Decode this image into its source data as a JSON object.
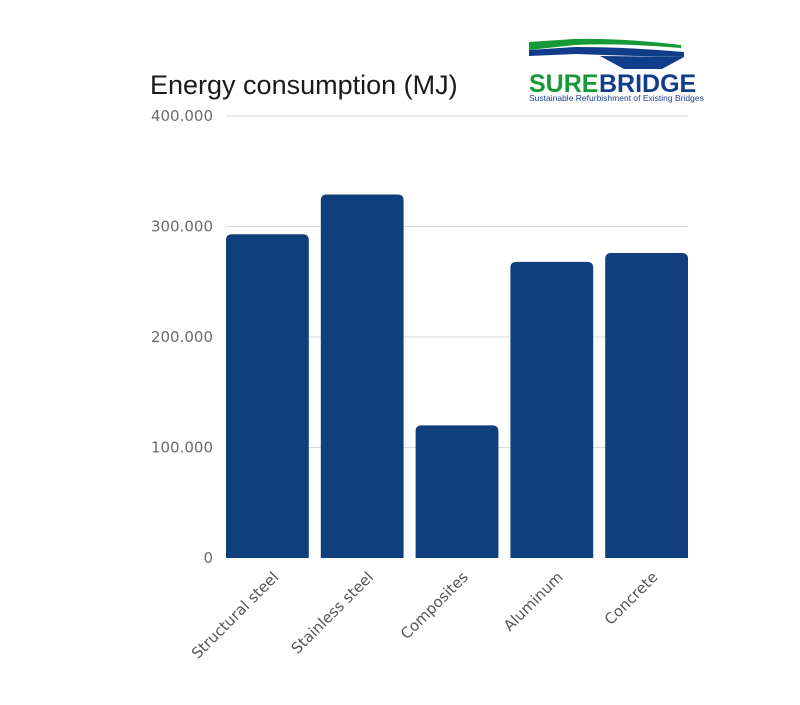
{
  "chart_data": {
    "type": "bar",
    "title": "Energy consumption (MJ)",
    "categories": [
      "Structural steel",
      "Stainless steel",
      "Composites",
      "Aluminum",
      "Concrete"
    ],
    "values": [
      293000,
      329000,
      120000,
      268000,
      276000
    ],
    "ylim": [
      0,
      400000
    ],
    "yticks": [
      0,
      100000,
      200000,
      300000,
      400000
    ],
    "ytick_labels": [
      "0",
      "100.000",
      "200.000",
      "300.000",
      "400.000"
    ],
    "xlabel": "",
    "ylabel": "",
    "grid": true,
    "legend": "none",
    "bar_color": "#0f3f7c"
  },
  "logo": {
    "word1": "SURE",
    "word2": "BRIDGE",
    "tagline": "Sustainable Refurbishment of Existing Bridges",
    "colors": {
      "green": "#159a37",
      "blue": "#0f3d8a"
    }
  }
}
